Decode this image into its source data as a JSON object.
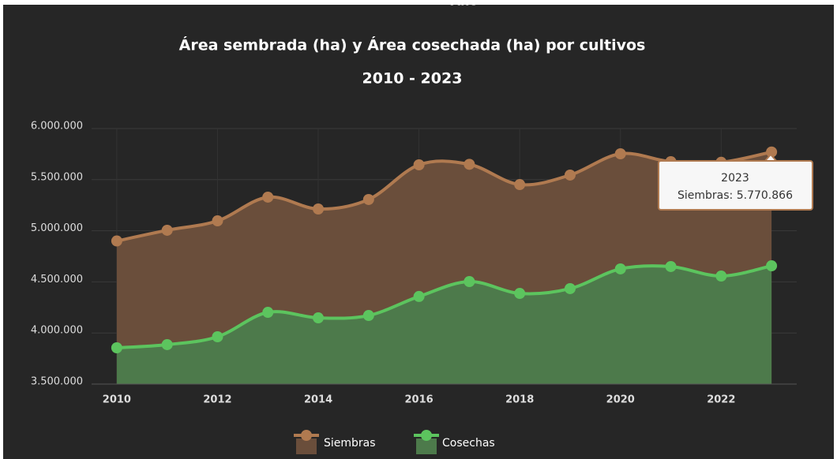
{
  "chart_data": {
    "type": "area",
    "header": "Año",
    "title": "Área sembrada (ha) y Área cosechada (ha) por cultivos",
    "subtitle": "2010 - 2023",
    "x": [
      2010,
      2011,
      2012,
      2013,
      2014,
      2015,
      2016,
      2017,
      2018,
      2019,
      2020,
      2021,
      2022,
      2023
    ],
    "series": [
      {
        "name": "Siembras",
        "color": "#b07a50",
        "fill": "#6a4e3b",
        "values": [
          4900000,
          5005000,
          5097000,
          5329000,
          5213000,
          5306000,
          5645000,
          5650000,
          5452000,
          5545000,
          5753000,
          5676000,
          5670000,
          5770866
        ]
      },
      {
        "name": "Cosechas",
        "color": "#5cc45e",
        "fill": "#4d7a4b",
        "values": [
          3855000,
          3886000,
          3963000,
          4202000,
          4148000,
          4171000,
          4357000,
          4503000,
          4387000,
          4434000,
          4627000,
          4650000,
          4557000,
          4657000
        ]
      }
    ],
    "xlim": [
      2009.5,
      2023.5
    ],
    "xticks": [
      2010,
      2012,
      2014,
      2016,
      2018,
      2020,
      2022
    ],
    "ylim": [
      3500000,
      6000000
    ],
    "yticks": [
      {
        "value": 3500000,
        "label": "3.500.000"
      },
      {
        "value": 4000000,
        "label": "4.000.000"
      },
      {
        "value": 4500000,
        "label": "4.500.000"
      },
      {
        "value": 5000000,
        "label": "5.000.000"
      },
      {
        "value": 5500000,
        "label": "5.500.000"
      },
      {
        "value": 6000000,
        "label": "6.000.000"
      }
    ],
    "grid": true,
    "legend": "bottom",
    "tooltip": {
      "title": "2023",
      "text": "Siembras: 5.770.866"
    }
  }
}
